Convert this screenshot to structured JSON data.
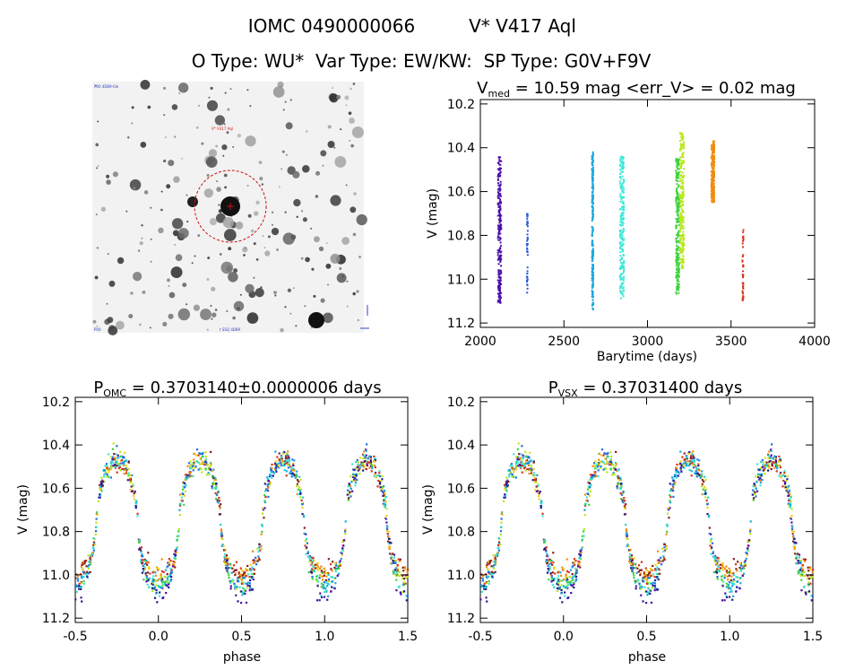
{
  "header": {
    "line1_id": "IOMC 0490000066",
    "line1_name": "V* V417 Aql",
    "line2": "O Type: WU*  Var Type: EW/KW:  SP Type: G0V+F9V"
  },
  "image_panel": {
    "labels": {
      "top_left": "P00 4D89-tile",
      "center": "V* V417 Aql",
      "bottom_left": "P00",
      "bottom_center": "t SSQ 4D89"
    }
  },
  "colors": {
    "purple": "#4b0fa8",
    "blue": "#1f6fe0",
    "lightblue": "#1aa7e0",
    "cyan": "#22d3c8",
    "aqua": "#3ee8d8",
    "green": "#3ed23e",
    "yellowgreen": "#b8e81a",
    "yellow": "#ecd21a",
    "orange": "#f08c10",
    "red": "#d8321a",
    "darkred": "#8a1a1a",
    "navy": "#1a1a8c"
  },
  "chart_data": [
    {
      "id": "lightcurve",
      "type": "scatter",
      "title": "",
      "title_main": "V",
      "title_sub": "med",
      "title_rest": " = 10.59 mag <err_V> = 0.02 mag",
      "xlabel": "Barytime (days)",
      "ylabel": "V (mag)",
      "xlim": [
        2000,
        4000
      ],
      "ylim": [
        11.22,
        10.18
      ],
      "xticks": [
        2000,
        2500,
        3000,
        3500,
        4000
      ],
      "yticks": [
        10.2,
        10.4,
        10.6,
        10.8,
        11.0,
        11.2
      ],
      "xtick_labels": [
        "2000",
        "2500",
        "3000",
        "3500",
        "4000"
      ],
      "ytick_labels": [
        "10.2",
        "10.4",
        "10.6",
        "10.8",
        "11.0",
        "11.2"
      ],
      "grid": false,
      "series": [
        {
          "color": "#4b0fa8",
          "x_range": [
            2105,
            2125
          ],
          "y_range": [
            10.44,
            11.11
          ]
        },
        {
          "color": "#2a5ad8",
          "x_range": [
            2278,
            2284
          ],
          "y_range": [
            10.7,
            11.07
          ]
        },
        {
          "color": "#1aa7e0",
          "x_range": [
            2668,
            2676
          ],
          "y_range": [
            10.42,
            11.14
          ]
        },
        {
          "color": "#3ee8d8",
          "x_range": [
            2835,
            2860
          ],
          "y_range": [
            10.44,
            11.09
          ]
        },
        {
          "color": "#3ed23e",
          "x_range": [
            3170,
            3190
          ],
          "y_range": [
            10.45,
            11.07
          ]
        },
        {
          "color": "#b8e81a",
          "x_range": [
            3195,
            3218
          ],
          "y_range": [
            10.33,
            10.95
          ]
        },
        {
          "color": "#f08c10",
          "x_range": [
            3382,
            3400
          ],
          "y_range": [
            10.37,
            10.65
          ]
        },
        {
          "color": "#d8321a",
          "x_range": [
            3568,
            3574
          ],
          "y_range": [
            10.77,
            11.1
          ]
        }
      ]
    },
    {
      "id": "phase_omc",
      "type": "scatter",
      "title": "",
      "title_main": "P",
      "title_sub": "OMC",
      "title_rest": " = 0.3703140±0.0000006 days",
      "xlabel": "phase",
      "ylabel": "V (mag)",
      "xlim": [
        -0.5,
        1.5
      ],
      "ylim": [
        11.22,
        10.18
      ],
      "xticks": [
        -0.5,
        0.0,
        0.5,
        1.0,
        1.5
      ],
      "yticks": [
        10.2,
        10.4,
        10.6,
        10.8,
        11.0,
        11.2
      ],
      "xtick_labels": [
        "-0.5",
        "0.0",
        "0.5",
        "1.0",
        "1.5"
      ],
      "ytick_labels": [
        "10.2",
        "10.4",
        "10.6",
        "10.8",
        "11.0",
        "11.2"
      ],
      "grid": false,
      "curve": {
        "max_mag": 10.47,
        "primary_min_mag": 11.05,
        "secondary_min_mag": 11.03,
        "min_phases": [
          -0.5,
          0.0,
          0.5,
          1.0,
          1.5
        ],
        "max_phases": [
          -0.25,
          0.25,
          0.75,
          1.25
        ]
      }
    },
    {
      "id": "phase_vsx",
      "type": "scatter",
      "title": "",
      "title_main": "P",
      "title_sub": "VSX",
      "title_rest": " = 0.37031400 days",
      "xlabel": "phase",
      "ylabel": "V (mag)",
      "xlim": [
        -0.5,
        1.5
      ],
      "ylim": [
        11.22,
        10.18
      ],
      "xticks": [
        -0.5,
        0.0,
        0.5,
        1.0,
        1.5
      ],
      "yticks": [
        10.2,
        10.4,
        10.6,
        10.8,
        11.0,
        11.2
      ],
      "xtick_labels": [
        "-0.5",
        "0.0",
        "0.5",
        "1.0",
        "1.5"
      ],
      "ytick_labels": [
        "10.2",
        "10.4",
        "10.6",
        "10.8",
        "11.0",
        "11.2"
      ],
      "grid": false,
      "curve": {
        "max_mag": 10.47,
        "primary_min_mag": 11.05,
        "secondary_min_mag": 11.03,
        "min_phases": [
          -0.5,
          0.0,
          0.5,
          1.0,
          1.5
        ],
        "max_phases": [
          -0.25,
          0.25,
          0.75,
          1.25
        ]
      }
    }
  ]
}
